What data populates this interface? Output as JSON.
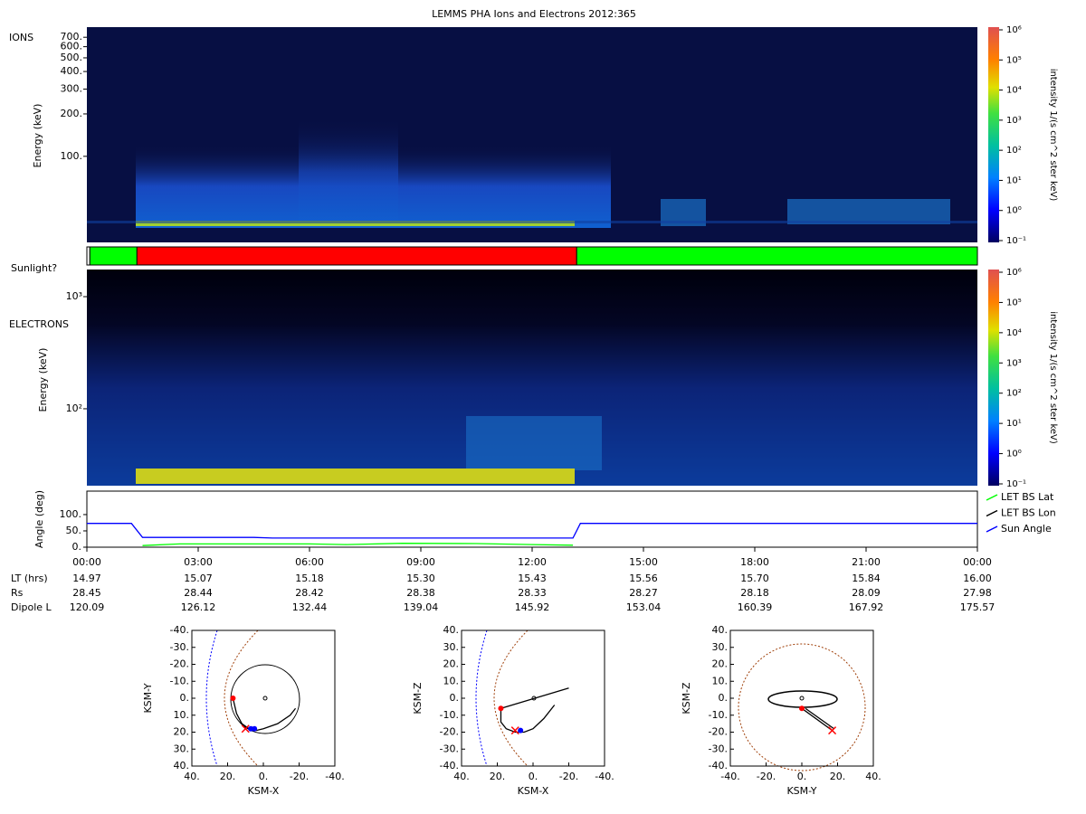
{
  "title": "LEMMS PHA Ions and Electrons  2012:365",
  "chart_data": [
    {
      "type": "heatmap",
      "panel_label": "IONS",
      "y_label": "Energy (keV)",
      "log_y": true,
      "ylim": [
        24.5,
        826
      ],
      "yticks": [
        {
          "value": 700,
          "label": "700."
        },
        {
          "value": 600,
          "label": "600."
        },
        {
          "value": 500,
          "label": "500."
        },
        {
          "value": 400,
          "label": "400."
        },
        {
          "value": 300,
          "label": "300."
        },
        {
          "value": 200,
          "label": "200."
        },
        {
          "value": 100,
          "label": "100."
        }
      ],
      "colorbar": {
        "label": "intensity 1/(s cm^2 ster keV)",
        "lim": [
          0.1,
          1000000
        ],
        "ticks": [
          {
            "value": 0.1,
            "label": "10⁻¹"
          },
          {
            "value": 1,
            "label": "10⁰"
          },
          {
            "value": 10,
            "label": "10¹"
          },
          {
            "value": 100,
            "label": "10²"
          },
          {
            "value": 1000,
            "label": "10³"
          },
          {
            "value": 10000,
            "label": "10⁴"
          },
          {
            "value": 100000,
            "label": "10⁵"
          },
          {
            "value": 1000000,
            "label": "10⁶"
          }
        ]
      }
    },
    {
      "type": "timeline",
      "label": "Sunlight?",
      "xlim": [
        0,
        24
      ],
      "segments": [
        {
          "start": 0,
          "end": 0.08,
          "color": "#ffffff"
        },
        {
          "start": 0.08,
          "end": 1.35,
          "color": "#00ff00"
        },
        {
          "start": 1.35,
          "end": 13.2,
          "color": "#ff0000"
        },
        {
          "start": 13.2,
          "end": 24,
          "color": "#00ff00"
        }
      ]
    },
    {
      "type": "heatmap",
      "panel_label": "ELECTRONS",
      "y_label": "Energy (keV)",
      "log_y": true,
      "ylim": [
        20.6,
        1746
      ],
      "yticks": [
        {
          "value": 1000,
          "label": "10³"
        },
        {
          "value": 100,
          "label": "10²"
        }
      ],
      "colorbar": {
        "label": "intensity 1/(s cm^2 ster keV)",
        "lim": [
          0.1,
          1000000
        ],
        "ticks": [
          {
            "value": 0.1,
            "label": "10⁻¹"
          },
          {
            "value": 1,
            "label": "10⁰"
          },
          {
            "value": 10,
            "label": "10¹"
          },
          {
            "value": 100,
            "label": "10²"
          },
          {
            "value": 1000,
            "label": "10³"
          },
          {
            "value": 10000,
            "label": "10⁴"
          },
          {
            "value": 100000,
            "label": "10⁵"
          },
          {
            "value": 1000000,
            "label": "10⁶"
          }
        ]
      }
    },
    {
      "type": "line",
      "y_label": "Angle (deg)",
      "xlim": [
        0,
        24
      ],
      "ylim": [
        0,
        172
      ],
      "legend": "right",
      "yticks": [
        {
          "value": 0,
          "label": "0."
        },
        {
          "value": 50,
          "label": "50."
        },
        {
          "value": 100,
          "label": "100."
        }
      ],
      "xticks": [
        {
          "value": 0,
          "label": "00:00"
        },
        {
          "value": 3,
          "label": "03:00"
        },
        {
          "value": 6,
          "label": "06:00"
        },
        {
          "value": 9,
          "label": "09:00"
        },
        {
          "value": 12,
          "label": "12:00"
        },
        {
          "value": 15,
          "label": "15:00"
        },
        {
          "value": 18,
          "label": "18:00"
        },
        {
          "value": 21,
          "label": "21:00"
        },
        {
          "value": 24,
          "label": "00:00"
        }
      ],
      "series": [
        {
          "name": "LET BS Lat",
          "color": "#00ff00",
          "x": [
            1.5,
            2.5,
            6,
            7,
            8.5,
            10.5,
            12,
            13.1
          ],
          "values": [
            5,
            10,
            10,
            8,
            12,
            11,
            8,
            6
          ]
        },
        {
          "name": "LET BS Lon",
          "color": "#000000",
          "x": [
            0,
            24
          ],
          "values": [
            null,
            null
          ]
        },
        {
          "name": "Sun Angle",
          "color": "#0000ff",
          "x": [
            0,
            1.2,
            1.5,
            4.5,
            5,
            13.1,
            13.3,
            24
          ],
          "values": [
            73,
            73,
            30,
            30,
            28,
            28,
            73,
            73
          ]
        }
      ]
    },
    {
      "type": "trajectory",
      "x_label": "KSM-X",
      "y_label": "KSM-Y",
      "xlim": [
        40,
        -40
      ],
      "ylim": [
        40,
        -40
      ],
      "xticks": [
        {
          "value": 40,
          "label": "40."
        },
        {
          "value": 20,
          "label": "20."
        },
        {
          "value": 0,
          "label": "0."
        },
        {
          "value": -20,
          "label": "-20."
        },
        {
          "value": -40,
          "label": "-40."
        }
      ],
      "yticks": [
        {
          "value": -40,
          "label": "-40."
        },
        {
          "value": -30,
          "label": "-30."
        },
        {
          "value": -20,
          "label": "-20."
        },
        {
          "value": -10,
          "label": "-10."
        },
        {
          "value": 0,
          "label": "0."
        },
        {
          "value": 10,
          "label": "10."
        },
        {
          "value": 20,
          "label": "20."
        },
        {
          "value": 30,
          "label": "30."
        },
        {
          "value": 40,
          "label": "40."
        }
      ],
      "series": [
        {
          "color": "#000000",
          "x": [
            17,
            15,
            12,
            8,
            4,
            0,
            -8,
            -15,
            -18
          ],
          "values": [
            0,
            9,
            15,
            18,
            19,
            18,
            15,
            10,
            6
          ]
        }
      ],
      "markers": [
        {
          "x": 17,
          "y": 0,
          "color": "#ff0000",
          "shape": "dot"
        },
        {
          "x": 10,
          "y": 18,
          "color": "#ff0000",
          "shape": "cross"
        },
        {
          "x": 7,
          "y": 18,
          "color": "#0000ff",
          "shape": "dot"
        },
        {
          "x": 5,
          "y": 18,
          "color": "#0000ff",
          "shape": "dot"
        }
      ]
    },
    {
      "type": "trajectory",
      "x_label": "KSM-X",
      "y_label": "KSM-Z",
      "xlim": [
        40,
        -40
      ],
      "ylim": [
        -40,
        40
      ],
      "xticks": [
        {
          "value": 40,
          "label": "40."
        },
        {
          "value": 20,
          "label": "20."
        },
        {
          "value": 0,
          "label": "0."
        },
        {
          "value": -20,
          "label": "-20."
        },
        {
          "value": -40,
          "label": "-40."
        }
      ],
      "yticks": [
        {
          "value": 40,
          "label": "40."
        },
        {
          "value": 30,
          "label": "30."
        },
        {
          "value": 20,
          "label": "20."
        },
        {
          "value": 10,
          "label": "10."
        },
        {
          "value": 0,
          "label": "0."
        },
        {
          "value": -10,
          "label": "-10."
        },
        {
          "value": -20,
          "label": "-20."
        },
        {
          "value": -30,
          "label": "-30."
        },
        {
          "value": -40,
          "label": "-40."
        }
      ],
      "series": [
        {
          "color": "#000000",
          "x": [
            18,
            18,
            15,
            10,
            5,
            0,
            -6,
            -12
          ],
          "values": [
            -6,
            -14,
            -18,
            -20,
            -20,
            -18,
            -12,
            -4
          ]
        },
        {
          "color": "#000000",
          "x": [
            18,
            -20
          ],
          "values": [
            -6,
            6
          ]
        }
      ],
      "markers": [
        {
          "x": 18,
          "y": -6,
          "color": "#ff0000",
          "shape": "dot"
        },
        {
          "x": 10,
          "y": -19,
          "color": "#ff0000",
          "shape": "cross"
        },
        {
          "x": 7,
          "y": -19,
          "color": "#0000ff",
          "shape": "dot"
        }
      ]
    },
    {
      "type": "trajectory",
      "x_label": "KSM-Y",
      "y_label": "KSM-Z",
      "xlim": [
        -40,
        40
      ],
      "ylim": [
        -40,
        40
      ],
      "xticks": [
        {
          "value": -40,
          "label": "-40."
        },
        {
          "value": -20,
          "label": "-20."
        },
        {
          "value": 0,
          "label": "0."
        },
        {
          "value": 20,
          "label": "20."
        },
        {
          "value": 40,
          "label": "40."
        }
      ],
      "yticks": [
        {
          "value": 40,
          "label": "40."
        },
        {
          "value": 30,
          "label": "30."
        },
        {
          "value": 20,
          "label": "20."
        },
        {
          "value": 10,
          "label": "10."
        },
        {
          "value": 0,
          "label": "0."
        },
        {
          "value": -10,
          "label": "-10."
        },
        {
          "value": -20,
          "label": "-20."
        },
        {
          "value": -30,
          "label": "-30."
        },
        {
          "value": -40,
          "label": "-40."
        }
      ],
      "series": [
        {
          "color": "#000000",
          "x": [
            0,
            17
          ],
          "values": [
            -6,
            -19
          ]
        },
        {
          "color": "#000000",
          "x": [
            2,
            18
          ],
          "values": [
            -6,
            -18
          ]
        }
      ],
      "markers": [
        {
          "x": 0,
          "y": -6,
          "color": "#ff0000",
          "shape": "dot"
        },
        {
          "x": 17,
          "y": -19,
          "color": "#ff0000",
          "shape": "cross"
        }
      ]
    }
  ],
  "ephemeris": {
    "rows": [
      {
        "label": "LT (hrs)",
        "values": [
          "14.97",
          "15.07",
          "15.18",
          "15.30",
          "15.43",
          "15.56",
          "15.70",
          "15.84",
          "16.00"
        ]
      },
      {
        "label": "Rs",
        "values": [
          "28.45",
          "28.44",
          "28.42",
          "28.38",
          "28.33",
          "28.27",
          "28.18",
          "28.09",
          "27.98"
        ]
      },
      {
        "label": "Dipole L",
        "values": [
          "120.09",
          "126.12",
          "132.44",
          "139.04",
          "145.92",
          "153.04",
          "160.39",
          "167.92",
          "175.57"
        ]
      }
    ]
  }
}
